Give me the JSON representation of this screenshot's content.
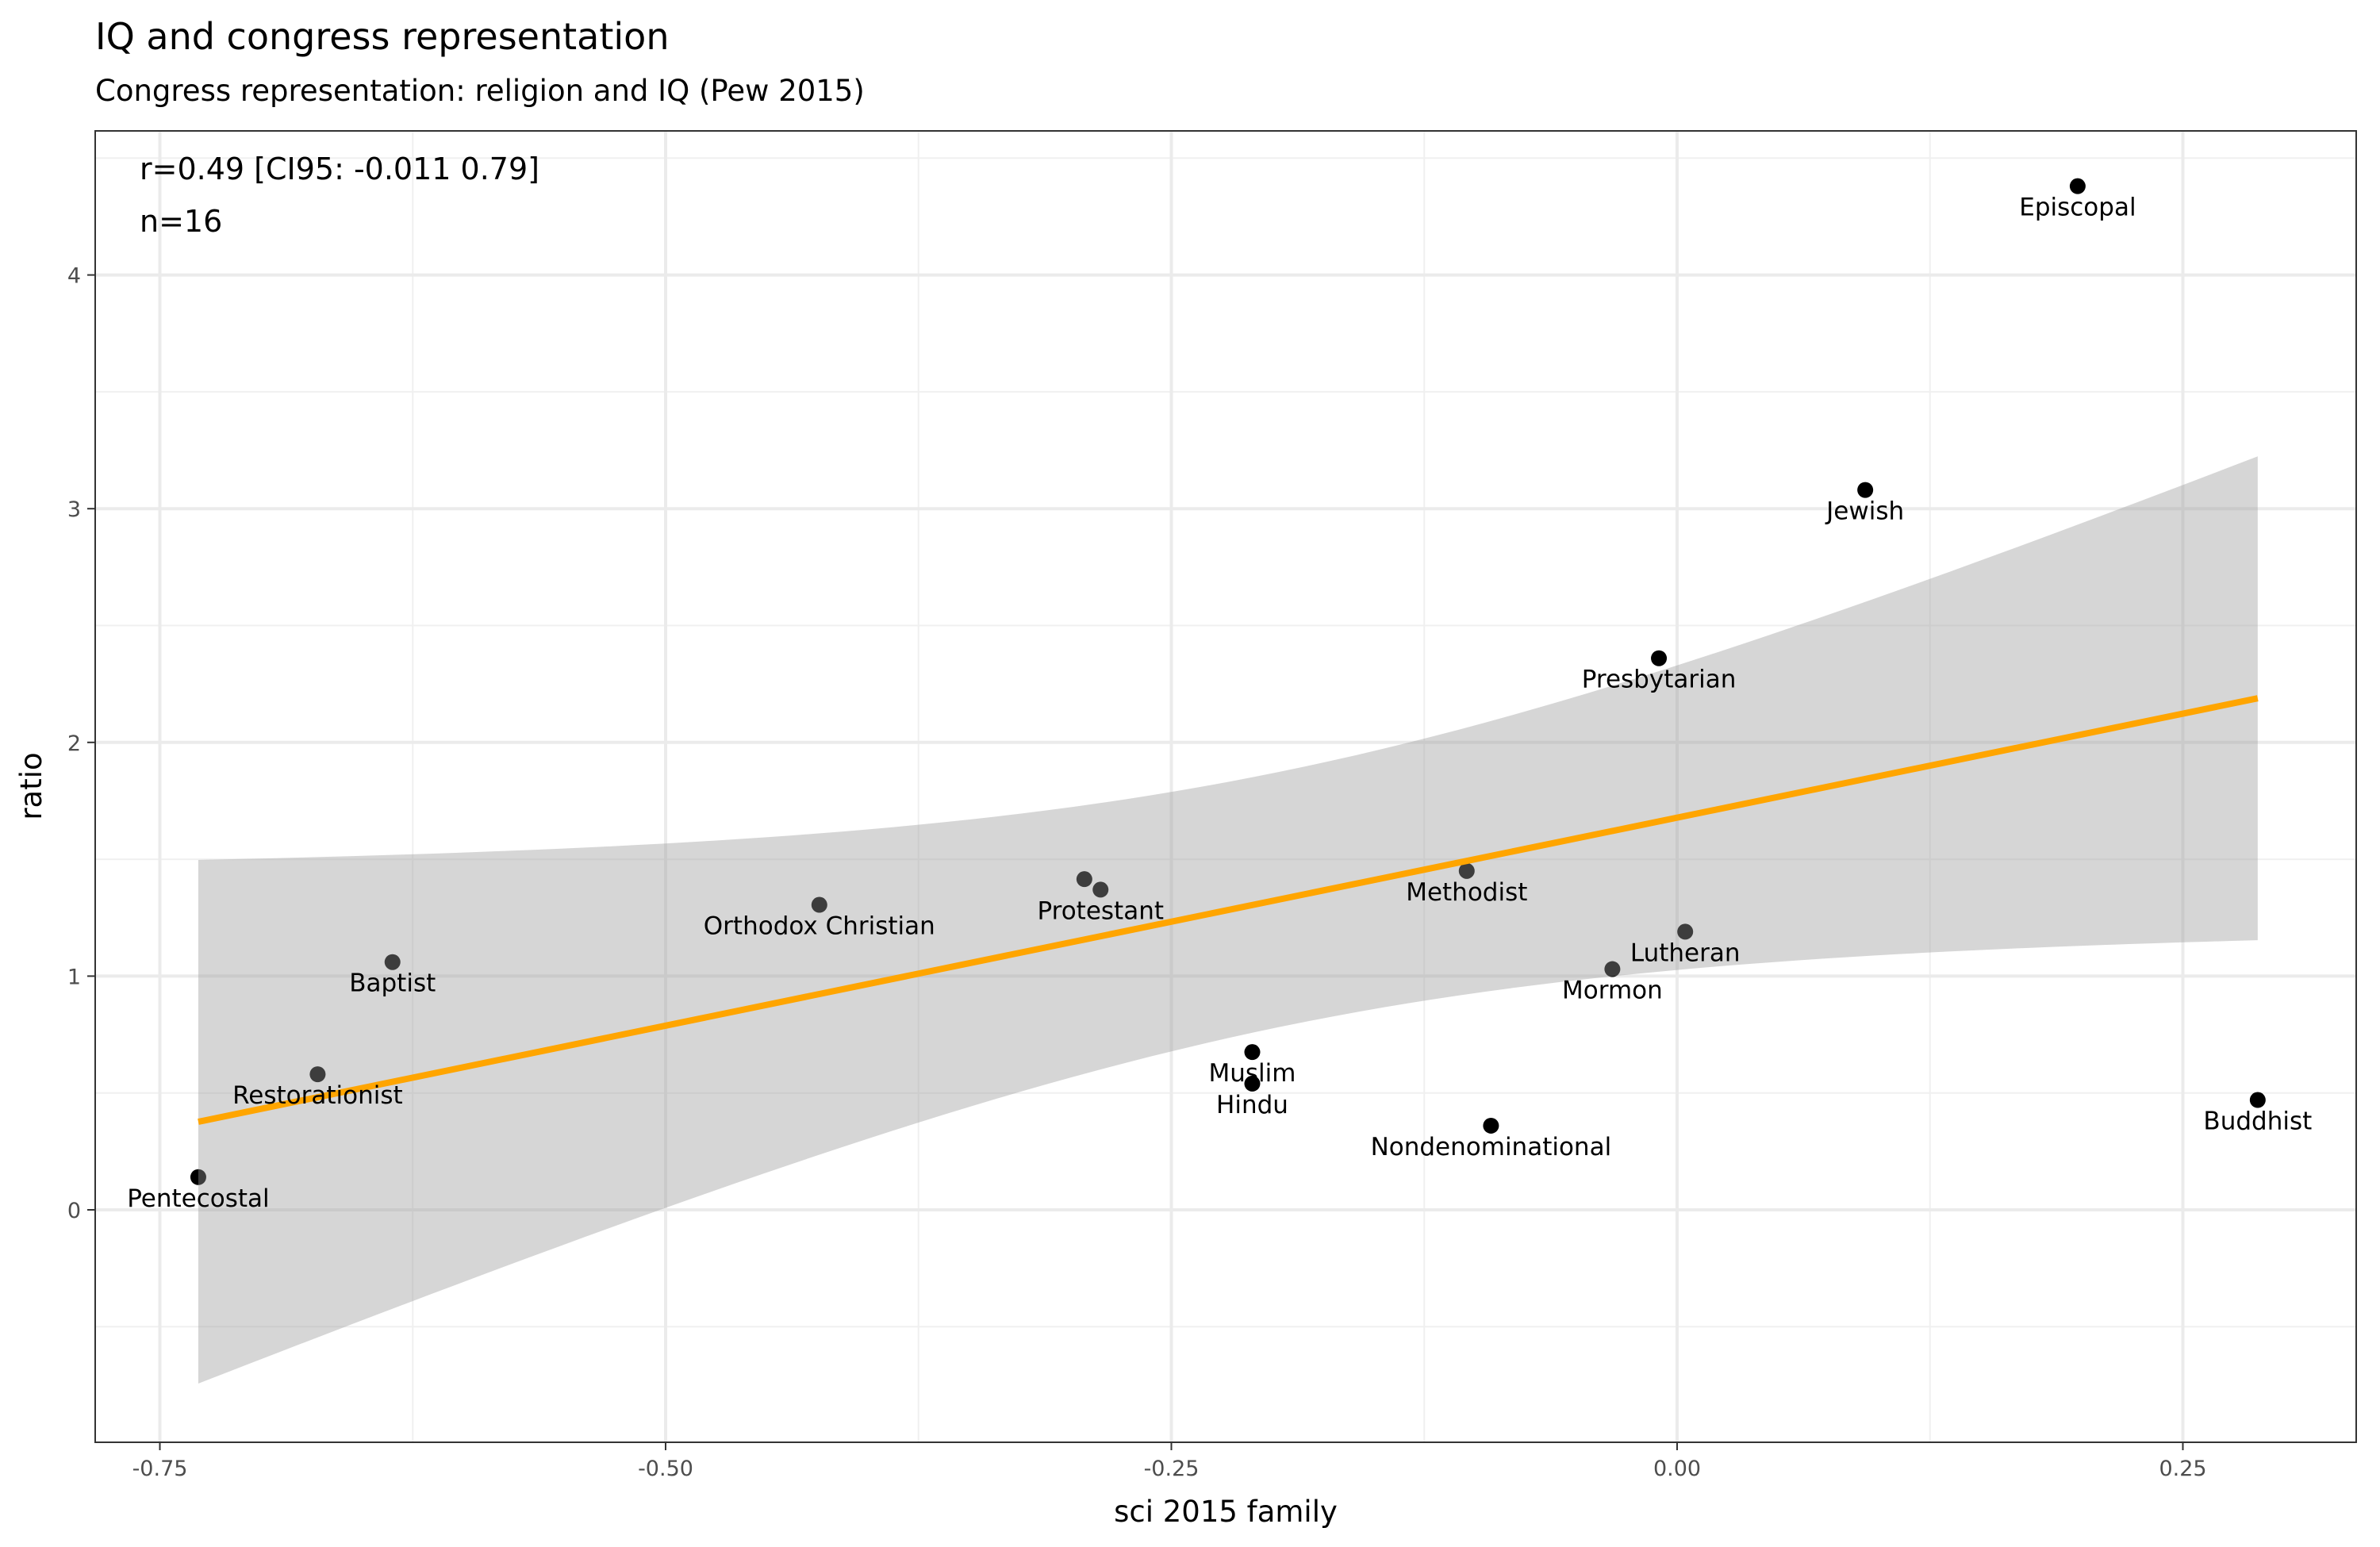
{
  "chart_data": {
    "type": "scatter",
    "title": "IQ and congress representation",
    "subtitle": "Congress representation: religion and IQ (Pew 2015)",
    "xlabel": "sci 2015 family",
    "ylabel": "ratio",
    "annotation": [
      "r=0.49 [CI95: -0.011 0.79]",
      "n=16"
    ],
    "xlim": [
      -0.795,
      0.335
    ],
    "ylim": [
      -0.99,
      4.6
    ],
    "xticks": [
      -0.75,
      -0.5,
      -0.25,
      0,
      0.25
    ],
    "xtick_labels": [
      "-0.75",
      "-0.50",
      "-0.25",
      "0.00",
      "0.25"
    ],
    "yticks": [
      0,
      1,
      2,
      3,
      4
    ],
    "ytick_labels": [
      "0",
      "1",
      "2",
      "3",
      "4"
    ],
    "grid": true,
    "points": [
      {
        "label": "Episcopal",
        "x": 0.198,
        "y": 4.38
      },
      {
        "label": "Jewish",
        "x": 0.093,
        "y": 3.08
      },
      {
        "label": "Presbytarian",
        "x": -0.009,
        "y": 2.36
      },
      {
        "label": "Methodist",
        "x": -0.104,
        "y": 1.45
      },
      {
        "label": "Lutheran",
        "x": 0.004,
        "y": 1.19
      },
      {
        "label": "Mormon",
        "x": -0.032,
        "y": 1.03
      },
      {
        "label": "Buddhist",
        "x": 0.287,
        "y": 0.47
      },
      {
        "label": "Nondenominational",
        "x": -0.092,
        "y": 0.36
      },
      {
        "label": "Muslim",
        "x": -0.21,
        "y": 0.675
      },
      {
        "label": "Hindu",
        "x": -0.21,
        "y": 0.54
      },
      {
        "label": "Protestant",
        "x": -0.285,
        "y": 1.37
      },
      {
        "label": "",
        "x": -0.293,
        "y": 1.415
      },
      {
        "label": "Orthodox Christian",
        "x": -0.424,
        "y": 1.305
      },
      {
        "label": "Baptist",
        "x": -0.635,
        "y": 1.06
      },
      {
        "label": "Restorationist",
        "x": -0.672,
        "y": 0.58
      },
      {
        "label": "Pentecostal",
        "x": -0.731,
        "y": 0.14
      }
    ],
    "fit": {
      "x_range": [
        -0.731,
        0.287
      ],
      "intercept": 1.678,
      "slope": 1.78,
      "ci_center_x": -0.195,
      "ci_a": 0.298,
      "ci_b": 3.33,
      "line_color": "#FFA500",
      "ribbon_color": "#999999"
    }
  }
}
